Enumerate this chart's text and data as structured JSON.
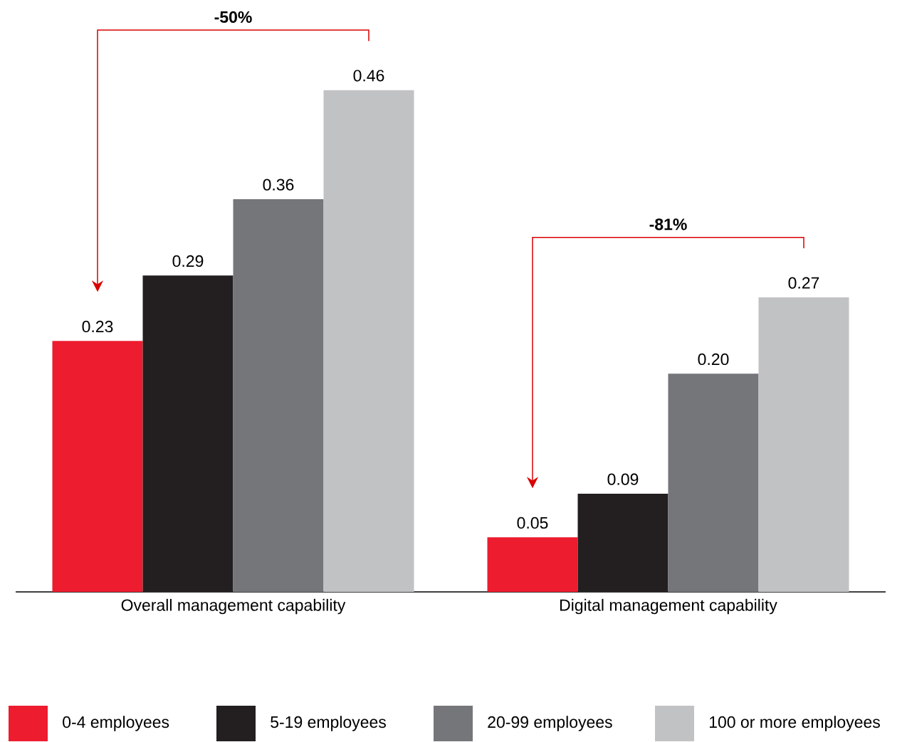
{
  "chart_data": {
    "type": "bar",
    "categories": [
      "Overall management capability",
      "Digital management capability"
    ],
    "series": [
      {
        "name": "0-4 employees",
        "color": "#ed1c2e",
        "values": [
          0.23,
          0.05
        ],
        "value_labels": [
          "0.23",
          "0.05"
        ]
      },
      {
        "name": "5-19 employees",
        "color": "#231f20",
        "values": [
          0.29,
          0.09
        ],
        "value_labels": [
          "0.29",
          "0.09"
        ]
      },
      {
        "name": "20-99 employees",
        "color": "#75767a",
        "values": [
          0.36,
          0.2
        ],
        "value_labels": [
          "0.36",
          "0.20"
        ]
      },
      {
        "name": "100 or more employees",
        "color": "#c1c2c4",
        "values": [
          0.46,
          0.27
        ],
        "value_labels": [
          "0.46",
          "0.27"
        ]
      }
    ],
    "annotations": [
      "-50%",
      "-81%"
    ],
    "legend": "bottom"
  }
}
